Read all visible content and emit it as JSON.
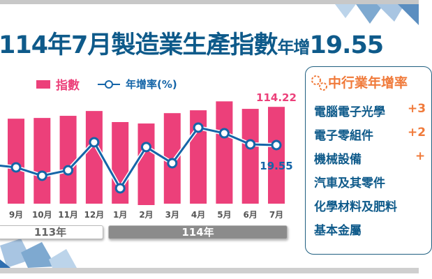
{
  "title": {
    "main_prefix": "114年7月",
    "main": "製造業生產指數",
    "small": "年增",
    "value": "19.55"
  },
  "legend": {
    "index_label": "指數",
    "growth_label": "年增率(%)"
  },
  "chart_data": {
    "type": "bar+line",
    "categories": [
      "9月",
      "10月",
      "11月",
      "12月",
      "1月",
      "2月",
      "3月",
      "4月",
      "5月",
      "6月",
      "7月"
    ],
    "series": [
      {
        "name": "指數",
        "type": "bar",
        "color": "#ec407a",
        "values": [
          107.6,
          108.0,
          109.2,
          111.9,
          105.7,
          104.9,
          110.7,
          112.3,
          117.3,
          113.1,
          114.22
        ]
      },
      {
        "name": "年增率(%)",
        "type": "line",
        "color": "#1565a8",
        "values": [
          8.9,
          4.9,
          7.5,
          20.9,
          -1.1,
          18.6,
          10.9,
          27.9,
          25.2,
          19.9,
          19.55
        ]
      }
    ],
    "data_labels": {
      "last_index": "114.22",
      "last_growth": "19.55"
    },
    "year_groups": [
      {
        "label": "113年"
      },
      {
        "label": "114年"
      }
    ]
  },
  "panel": {
    "title": "中行業年增率",
    "rows": [
      {
        "label": "電腦電子光學",
        "value": "+3"
      },
      {
        "label": "電子零組件",
        "value": "+2"
      },
      {
        "label": "機械設備",
        "value": "+"
      },
      {
        "label": "汽車及其零件",
        "value": ""
      },
      {
        "label": "化學材料及肥料",
        "value": ""
      },
      {
        "label": "基本金屬",
        "value": ""
      }
    ]
  }
}
